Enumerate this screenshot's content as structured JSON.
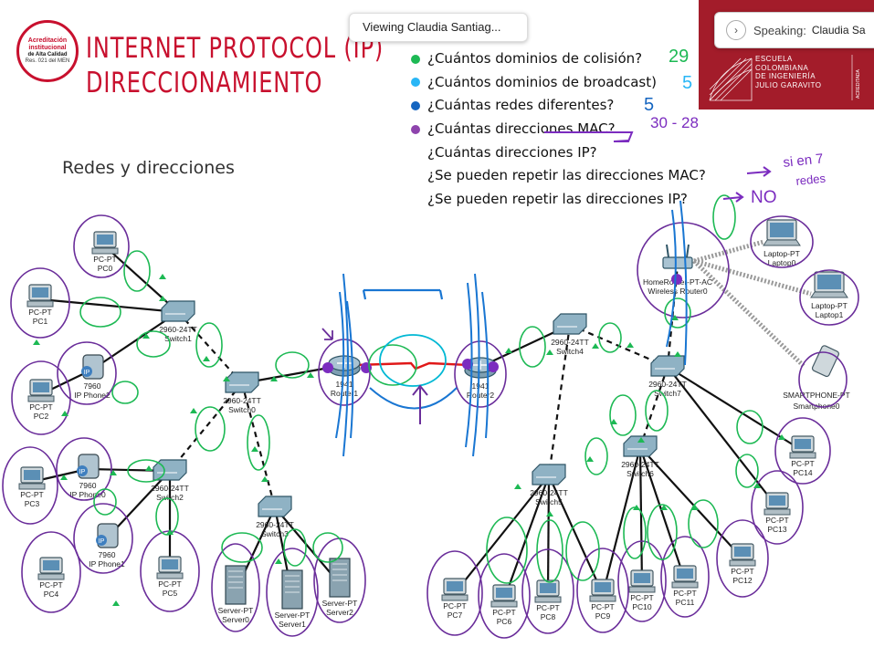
{
  "badge": {
    "line1": "Acreditación",
    "line2": "institucional",
    "line3": "de Alta Calidad",
    "line4": "Res. 021 del MEN"
  },
  "slide": {
    "title_line1": "INTERNET PROTOCOL (IP)",
    "title_line2": "DIRECCIONAMIENTO",
    "subtitle": "Redes y direcciones",
    "questions": [
      "¿Cuántos dominios de colisión?",
      "¿Cuántos dominios de broadcast)",
      "¿Cuántas redes diferentes?",
      "¿Cuántas direcciones MAC?",
      "¿Cuántas direcciones IP?",
      "¿Se pueden repetir las direcciones MAC?",
      "¿Se pueden repetir las direcciones IP?"
    ],
    "annotations": {
      "a1": "29",
      "a2": "5",
      "a3": "5",
      "a4": "30 - 28",
      "a6a": "si  en 7",
      "a6b": "redes",
      "a7": "NO"
    }
  },
  "logo": {
    "l1": "ESCUELA",
    "l2": "COLOMBIANA",
    "l3": "DE INGENIERÍA",
    "l4": "JULIO GARAVITO"
  },
  "overlay": {
    "viewing": "Viewing Claudia Santiag...",
    "speaking_label": "Speaking:",
    "speaking_name": "Claudia Sa"
  },
  "devices": {
    "pc0": [
      "PC-PT",
      "PC0"
    ],
    "pc1": [
      "PC-PT",
      "PC1"
    ],
    "pc2": [
      "PC-PT",
      "PC2"
    ],
    "pc3": [
      "PC-PT",
      "PC3"
    ],
    "pc4": [
      "PC-PT",
      "PC4"
    ],
    "pc5": [
      "PC-PT",
      "PC5"
    ],
    "pc7": [
      "PC-PT",
      "PC7"
    ],
    "pc6": [
      "PC-PT",
      "PC6"
    ],
    "pc8": [
      "PC-PT",
      "PC8"
    ],
    "pc9": [
      "PC-PT",
      "PC9"
    ],
    "pc10": [
      "PC-PT",
      "PC10"
    ],
    "pc11": [
      "PC-PT",
      "PC11"
    ],
    "pc12": [
      "PC-PT",
      "PC12"
    ],
    "pc13": [
      "PC-PT",
      "PC13"
    ],
    "pc14": [
      "PC-PT",
      "PC14"
    ],
    "phone0": [
      "7960",
      "IP Phone0"
    ],
    "phone1": [
      "7960",
      "IP Phone1"
    ],
    "phone2": [
      "7960",
      "IP Phone2"
    ],
    "switch1": [
      "2960-24TT",
      "Switch1"
    ],
    "switch0": [
      "2960-24TT",
      "Switch0"
    ],
    "switch2": [
      "2960-24TT",
      "Switch2"
    ],
    "switch3": [
      "2960-24TT",
      "Switch3"
    ],
    "switch4": [
      "2960-24TT",
      "Switch4"
    ],
    "switch5": [
      "2960-24TT",
      "Switch5"
    ],
    "switch6": [
      "2960-24TT",
      "Switch6"
    ],
    "switch7": [
      "2960-24TT",
      "Switch7"
    ],
    "router1": [
      "1941",
      "Router1"
    ],
    "router2": [
      "1941",
      "Router2"
    ],
    "server0": [
      "Server-PT",
      "Server0"
    ],
    "server1": [
      "Server-PT",
      "Server1"
    ],
    "server2": [
      "Server-PT",
      "Server2"
    ],
    "wrouter": [
      "HomeRouter-PT-AC",
      "Wireless Router0"
    ],
    "laptop0": [
      "Laptop-PT",
      "Laptop0"
    ],
    "laptop1": [
      "Laptop-PT",
      "Laptop1"
    ],
    "phone_sm": [
      "SMARTPHONE-PT",
      "Smartphone0"
    ]
  },
  "colors": {
    "red": "#c8102e",
    "ink_green": "#1db954",
    "ink_purple": "#6a2d9a",
    "ink_blue": "#1976d2"
  }
}
